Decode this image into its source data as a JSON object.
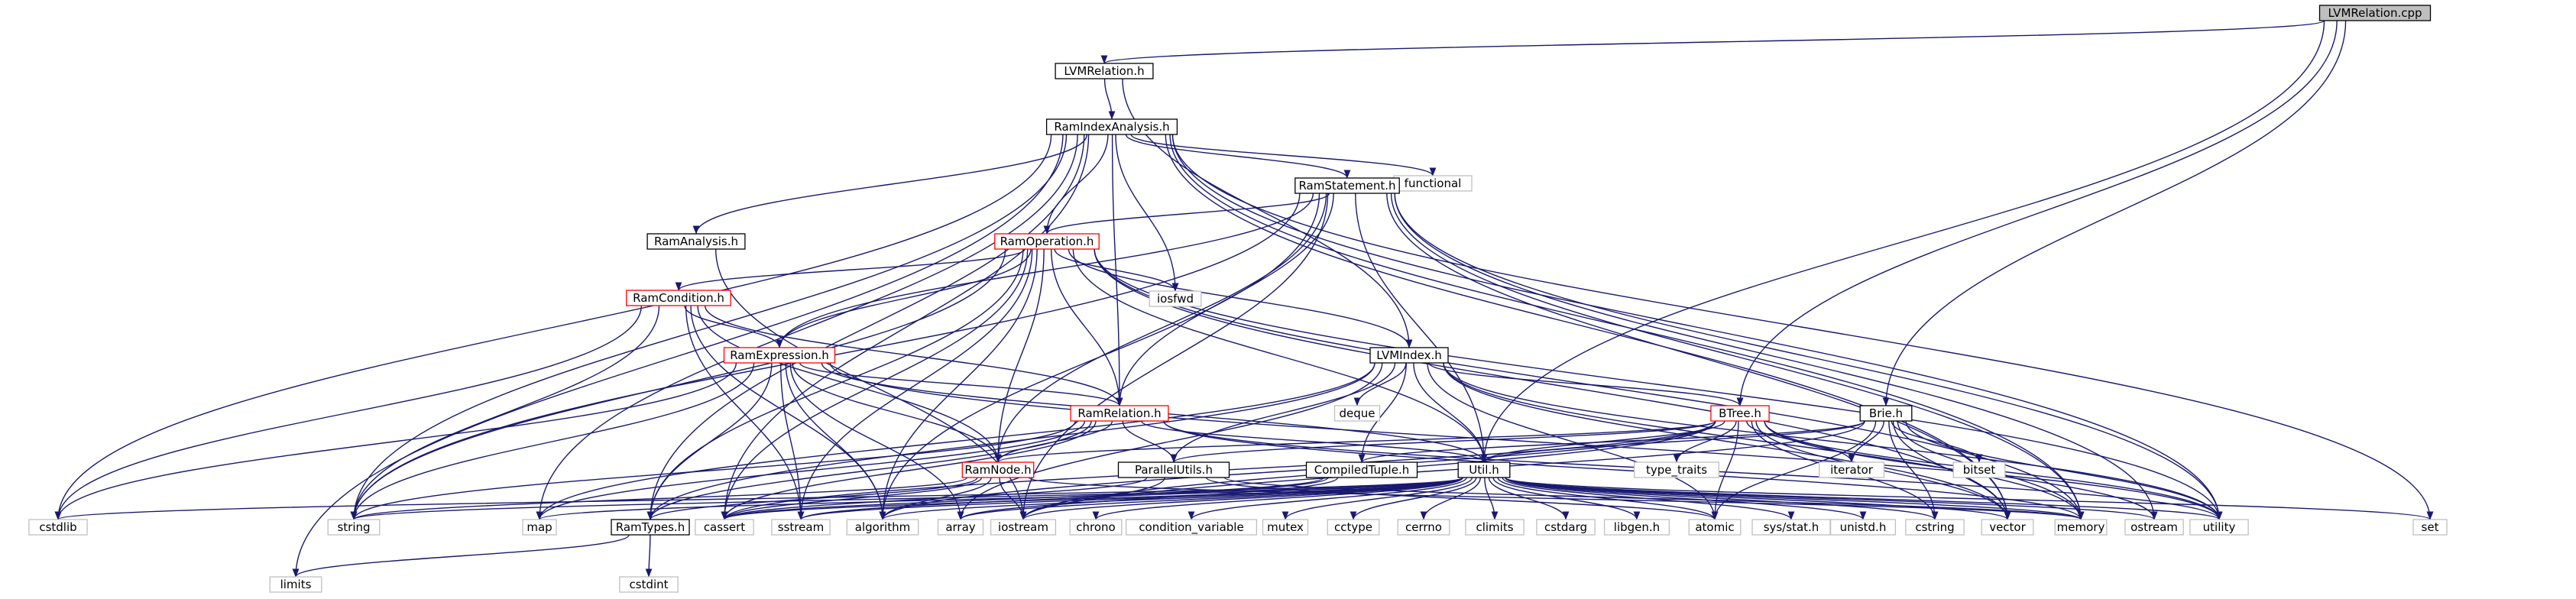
{
  "diagram": {
    "title": "LVMRelation.cpp",
    "colors": {
      "edge": "#191970",
      "root_fill": "#bfbfbf",
      "node_border": "#000000",
      "linked_border": "#ff0000",
      "external_border": "#bfbfbf"
    },
    "nodes": [
      {
        "id": "root",
        "label": "LVMRelation.cpp",
        "kind": "root"
      },
      {
        "id": "lvmrel",
        "label": "LVMRelation.h",
        "kind": "normal"
      },
      {
        "id": "rai",
        "label": "RamIndexAnalysis.h",
        "kind": "normal"
      },
      {
        "id": "functional",
        "label": "functional",
        "kind": "external"
      },
      {
        "id": "ramstatement",
        "label": "RamStatement.h",
        "kind": "normal"
      },
      {
        "id": "ramanalysis",
        "label": "RamAnalysis.h",
        "kind": "normal"
      },
      {
        "id": "ramop",
        "label": "RamOperation.h",
        "kind": "linked"
      },
      {
        "id": "iosfwd",
        "label": "iosfwd",
        "kind": "external"
      },
      {
        "id": "ramcond",
        "label": "RamCondition.h",
        "kind": "linked"
      },
      {
        "id": "ramexpr",
        "label": "RamExpression.h",
        "kind": "linked"
      },
      {
        "id": "lvmindex",
        "label": "LVMIndex.h",
        "kind": "normal"
      },
      {
        "id": "deque",
        "label": "deque",
        "kind": "external"
      },
      {
        "id": "ramrel",
        "label": "RamRelation.h",
        "kind": "linked"
      },
      {
        "id": "btree",
        "label": "BTree.h",
        "kind": "linked"
      },
      {
        "id": "brie",
        "label": "Brie.h",
        "kind": "normal"
      },
      {
        "id": "iterator",
        "label": "iterator",
        "kind": "external"
      },
      {
        "id": "bitset",
        "label": "bitset",
        "kind": "external"
      },
      {
        "id": "type_traits",
        "label": "type_traits",
        "kind": "external"
      },
      {
        "id": "ramnode",
        "label": "RamNode.h",
        "kind": "linked"
      },
      {
        "id": "parallel",
        "label": "ParallelUtils.h",
        "kind": "normal"
      },
      {
        "id": "compiled",
        "label": "CompiledTuple.h",
        "kind": "normal"
      },
      {
        "id": "util",
        "label": "Util.h",
        "kind": "normal"
      },
      {
        "id": "cstdlib",
        "label": "cstdlib",
        "kind": "external"
      },
      {
        "id": "string",
        "label": "string",
        "kind": "external"
      },
      {
        "id": "map",
        "label": "map",
        "kind": "external"
      },
      {
        "id": "ramtypes",
        "label": "RamTypes.h",
        "kind": "normal"
      },
      {
        "id": "cassert",
        "label": "cassert",
        "kind": "external"
      },
      {
        "id": "sstream",
        "label": "sstream",
        "kind": "external"
      },
      {
        "id": "algorithm",
        "label": "algorithm",
        "kind": "external"
      },
      {
        "id": "array",
        "label": "array",
        "kind": "external"
      },
      {
        "id": "iostream",
        "label": "iostream",
        "kind": "external"
      },
      {
        "id": "chrono",
        "label": "chrono",
        "kind": "external"
      },
      {
        "id": "condvar",
        "label": "condition_variable",
        "kind": "external"
      },
      {
        "id": "mutex",
        "label": "mutex",
        "kind": "external"
      },
      {
        "id": "cctype",
        "label": "cctype",
        "kind": "external"
      },
      {
        "id": "cerrno",
        "label": "cerrno",
        "kind": "external"
      },
      {
        "id": "climits",
        "label": "climits",
        "kind": "external"
      },
      {
        "id": "cstdarg",
        "label": "cstdarg",
        "kind": "external"
      },
      {
        "id": "libgen",
        "label": "libgen.h",
        "kind": "external"
      },
      {
        "id": "atomic",
        "label": "atomic",
        "kind": "external"
      },
      {
        "id": "sysstat",
        "label": "sys/stat.h",
        "kind": "external"
      },
      {
        "id": "unistd",
        "label": "unistd.h",
        "kind": "external"
      },
      {
        "id": "cstring",
        "label": "cstring",
        "kind": "external"
      },
      {
        "id": "vector",
        "label": "vector",
        "kind": "external"
      },
      {
        "id": "memory",
        "label": "memory",
        "kind": "external"
      },
      {
        "id": "ostream",
        "label": "ostream",
        "kind": "external"
      },
      {
        "id": "utility",
        "label": "utility",
        "kind": "external"
      },
      {
        "id": "set",
        "label": "set",
        "kind": "external"
      },
      {
        "id": "limits",
        "label": "limits",
        "kind": "external"
      },
      {
        "id": "cstdint",
        "label": "cstdint",
        "kind": "external"
      }
    ],
    "edges": [
      [
        "root",
        "lvmrel"
      ],
      [
        "root",
        "btree"
      ],
      [
        "root",
        "brie"
      ],
      [
        "root",
        "util"
      ],
      [
        "lvmrel",
        "rai"
      ],
      [
        "lvmrel",
        "lvmindex"
      ],
      [
        "rai",
        "functional"
      ],
      [
        "rai",
        "ramstatement"
      ],
      [
        "rai",
        "ramanalysis"
      ],
      [
        "rai",
        "ramop"
      ],
      [
        "rai",
        "iosfwd"
      ],
      [
        "rai",
        "ramrel"
      ],
      [
        "rai",
        "cstdlib"
      ],
      [
        "rai",
        "string"
      ],
      [
        "rai",
        "map"
      ],
      [
        "rai",
        "ramtypes"
      ],
      [
        "rai",
        "cassert"
      ],
      [
        "rai",
        "limits"
      ],
      [
        "rai",
        "set"
      ],
      [
        "rai",
        "utility"
      ],
      [
        "rai",
        "memory"
      ],
      [
        "rai",
        "vector"
      ],
      [
        "ramstatement",
        "ramop"
      ],
      [
        "ramstatement",
        "ramexpr"
      ],
      [
        "ramstatement",
        "ramrel"
      ],
      [
        "ramstatement",
        "ramnode"
      ],
      [
        "ramstatement",
        "util"
      ],
      [
        "ramstatement",
        "string"
      ],
      [
        "ramstatement",
        "algorithm"
      ],
      [
        "ramstatement",
        "iostream"
      ],
      [
        "ramstatement",
        "vector"
      ],
      [
        "ramstatement",
        "memory"
      ],
      [
        "ramstatement",
        "ostream"
      ],
      [
        "ramstatement",
        "utility"
      ],
      [
        "ramanalysis",
        "iostream"
      ],
      [
        "ramop",
        "ramcond"
      ],
      [
        "ramop",
        "ramexpr"
      ],
      [
        "ramop",
        "iosfwd"
      ],
      [
        "ramop",
        "lvmindex"
      ],
      [
        "ramop",
        "ramrel"
      ],
      [
        "ramop",
        "ramnode"
      ],
      [
        "ramop",
        "util"
      ],
      [
        "ramop",
        "ramtypes"
      ],
      [
        "ramop",
        "string"
      ],
      [
        "ramop",
        "cassert"
      ],
      [
        "ramop",
        "sstream"
      ],
      [
        "ramop",
        "algorithm"
      ],
      [
        "ramop",
        "vector"
      ],
      [
        "ramop",
        "memory"
      ],
      [
        "ramop",
        "utility"
      ],
      [
        "ramcond",
        "ramexpr"
      ],
      [
        "ramcond",
        "ramrel"
      ],
      [
        "ramcond",
        "ramnode"
      ],
      [
        "ramcond",
        "cstdlib"
      ],
      [
        "ramcond",
        "string"
      ],
      [
        "ramcond",
        "sstream"
      ],
      [
        "ramcond",
        "algorithm"
      ],
      [
        "ramexpr",
        "ramrel"
      ],
      [
        "ramexpr",
        "ramnode"
      ],
      [
        "ramexpr",
        "util"
      ],
      [
        "ramexpr",
        "ramtypes"
      ],
      [
        "ramexpr",
        "cstdlib"
      ],
      [
        "ramexpr",
        "string"
      ],
      [
        "ramexpr",
        "sstream"
      ],
      [
        "ramexpr",
        "algorithm"
      ],
      [
        "ramexpr",
        "array"
      ],
      [
        "ramexpr",
        "utility"
      ],
      [
        "lvmindex",
        "deque"
      ],
      [
        "lvmindex",
        "btree"
      ],
      [
        "lvmindex",
        "parallel"
      ],
      [
        "lvmindex",
        "compiled"
      ],
      [
        "lvmindex",
        "util"
      ],
      [
        "lvmindex",
        "ramtypes"
      ],
      [
        "lvmindex",
        "map"
      ],
      [
        "lvmindex",
        "atomic"
      ],
      [
        "lvmindex",
        "vector"
      ],
      [
        "lvmindex",
        "memory"
      ],
      [
        "lvmindex",
        "utility"
      ],
      [
        "lvmindex",
        "array"
      ],
      [
        "ramrel",
        "ramnode"
      ],
      [
        "ramrel",
        "parallel"
      ],
      [
        "ramrel",
        "util"
      ],
      [
        "ramrel",
        "ramtypes"
      ],
      [
        "ramrel",
        "string"
      ],
      [
        "ramrel",
        "map"
      ],
      [
        "ramrel",
        "cassert"
      ],
      [
        "ramrel",
        "memory"
      ],
      [
        "ramrel",
        "utility"
      ],
      [
        "btree",
        "util"
      ],
      [
        "btree",
        "ramnode"
      ],
      [
        "btree",
        "parallel"
      ],
      [
        "btree",
        "type_traits"
      ],
      [
        "btree",
        "iterator"
      ],
      [
        "btree",
        "cassert"
      ],
      [
        "btree",
        "algorithm"
      ],
      [
        "btree",
        "iostream"
      ],
      [
        "btree",
        "vector"
      ],
      [
        "btree",
        "ostream"
      ],
      [
        "btree",
        "utility"
      ],
      [
        "btree",
        "cstring"
      ],
      [
        "btree",
        "atomic"
      ],
      [
        "brie",
        "compiled"
      ],
      [
        "brie",
        "util"
      ],
      [
        "brie",
        "iterator"
      ],
      [
        "brie",
        "bitset"
      ],
      [
        "brie",
        "atomic"
      ],
      [
        "brie",
        "cstring"
      ],
      [
        "brie",
        "vector"
      ],
      [
        "brie",
        "memory"
      ],
      [
        "brie",
        "utility"
      ],
      [
        "brie",
        "iostream"
      ],
      [
        "ramnode",
        "ramtypes"
      ],
      [
        "ramnode",
        "cassert"
      ],
      [
        "ramnode",
        "iostream"
      ],
      [
        "ramnode",
        "algorithm"
      ],
      [
        "ramnode",
        "string"
      ],
      [
        "ramnode",
        "memory"
      ],
      [
        "parallel",
        "cassert"
      ],
      [
        "parallel",
        "iostream"
      ],
      [
        "parallel",
        "atomic"
      ],
      [
        "parallel",
        "memory"
      ],
      [
        "compiled",
        "cassert"
      ],
      [
        "compiled",
        "sstream"
      ],
      [
        "compiled",
        "array"
      ],
      [
        "util",
        "cstdlib"
      ],
      [
        "util",
        "string"
      ],
      [
        "util",
        "map"
      ],
      [
        "util",
        "cassert"
      ],
      [
        "util",
        "sstream"
      ],
      [
        "util",
        "algorithm"
      ],
      [
        "util",
        "array"
      ],
      [
        "util",
        "iostream"
      ],
      [
        "util",
        "chrono"
      ],
      [
        "util",
        "condvar"
      ],
      [
        "util",
        "mutex"
      ],
      [
        "util",
        "cctype"
      ],
      [
        "util",
        "cerrno"
      ],
      [
        "util",
        "climits"
      ],
      [
        "util",
        "cstdarg"
      ],
      [
        "util",
        "libgen"
      ],
      [
        "util",
        "atomic"
      ],
      [
        "util",
        "sysstat"
      ],
      [
        "util",
        "unistd"
      ],
      [
        "util",
        "cstring"
      ],
      [
        "util",
        "vector"
      ],
      [
        "util",
        "memory"
      ],
      [
        "util",
        "ostream"
      ],
      [
        "util",
        "utility"
      ],
      [
        "util",
        "set"
      ],
      [
        "ramtypes",
        "limits"
      ],
      [
        "ramtypes",
        "cstdint"
      ]
    ]
  }
}
